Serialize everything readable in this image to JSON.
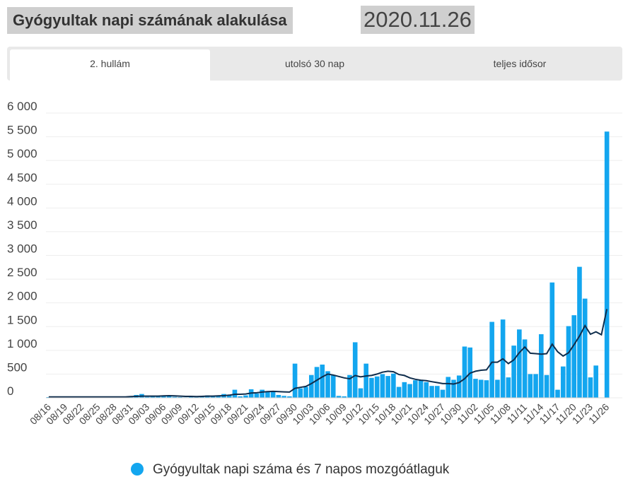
{
  "header": {
    "title": "Gyógyultak napi számának alakulása",
    "date": "2020.11.26"
  },
  "tabs": [
    "2. hullám",
    "utolsó 30 nap",
    "teljes idősor"
  ],
  "chart_data": {
    "type": "bar",
    "categories": [
      "08/16",
      null,
      null,
      "08/19",
      null,
      null,
      "08/22",
      null,
      null,
      "08/25",
      null,
      null,
      "08/28",
      null,
      null,
      "08/31",
      null,
      null,
      "09/03",
      null,
      null,
      "09/06",
      null,
      null,
      "09/09",
      null,
      null,
      "09/12",
      null,
      null,
      "09/15",
      null,
      null,
      "09/18",
      null,
      null,
      "09/21",
      null,
      null,
      "09/24",
      null,
      null,
      "09/27",
      null,
      null,
      "09/30",
      null,
      null,
      "10/03",
      null,
      null,
      "10/06",
      null,
      null,
      "10/09",
      null,
      null,
      "10/12",
      null,
      null,
      "10/15",
      null,
      null,
      "10/18",
      null,
      null,
      "10/21",
      null,
      null,
      "10/24",
      null,
      null,
      "10/27",
      null,
      null,
      "10/30",
      null,
      null,
      "11/02",
      null,
      null,
      "11/05",
      null,
      null,
      "11/08",
      null,
      null,
      "11/11",
      null,
      null,
      "11/14",
      null,
      null,
      "11/17",
      null,
      null,
      "11/20",
      null,
      null,
      "11/23",
      null,
      null,
      "11/26"
    ],
    "series": [
      {
        "name": "Gyógyultak napi száma és 7 napos mozgóátlaguk",
        "color": "#13a6ef",
        "line_color": "#0f2d4c",
        "values": [
          15,
          10,
          20,
          15,
          10,
          25,
          15,
          10,
          15,
          20,
          10,
          15,
          20,
          10,
          5,
          30,
          60,
          80,
          20,
          25,
          30,
          45,
          40,
          20,
          15,
          10,
          30,
          25,
          30,
          50,
          25,
          40,
          80,
          60,
          170,
          30,
          50,
          180,
          90,
          170,
          120,
          140,
          60,
          40,
          30,
          720,
          200,
          230,
          480,
          650,
          700,
          560,
          480,
          40,
          30,
          480,
          1170,
          200,
          720,
          420,
          450,
          500,
          460,
          510,
          230,
          330,
          290,
          370,
          380,
          330,
          250,
          250,
          170,
          440,
          380,
          470,
          1080,
          1060,
          400,
          380,
          370,
          1600,
          380,
          1650,
          430,
          1100,
          1440,
          1230,
          500,
          500,
          1340,
          480,
          2430,
          170,
          660,
          1510,
          1740,
          2760,
          2090,
          430,
          680,
          0,
          5610
        ],
        "moving_average": [
          20,
          20,
          20,
          20,
          20,
          20,
          20,
          20,
          20,
          20,
          20,
          20,
          20,
          20,
          20,
          25,
          30,
          35,
          35,
          35,
          35,
          40,
          45,
          40,
          35,
          30,
          30,
          25,
          30,
          35,
          35,
          40,
          45,
          55,
          75,
          75,
          80,
          100,
          105,
          120,
          130,
          135,
          130,
          125,
          120,
          200,
          220,
          240,
          300,
          370,
          440,
          500,
          480,
          450,
          420,
          400,
          470,
          440,
          460,
          470,
          500,
          540,
          560,
          550,
          490,
          470,
          420,
          390,
          370,
          360,
          340,
          320,
          300,
          300,
          290,
          320,
          400,
          520,
          560,
          580,
          590,
          750,
          750,
          820,
          720,
          800,
          950,
          1070,
          940,
          930,
          920,
          930,
          1130,
          970,
          880,
          950,
          1120,
          1300,
          1520,
          1340,
          1390,
          1330,
          1870
        ]
      }
    ],
    "ylim": [
      0,
      6000
    ],
    "yticks": [
      0,
      500,
      {
        "value": 1000,
        "label": "1 000"
      },
      {
        "value": 1500,
        "label": "1 500"
      },
      {
        "value": 2000,
        "label": "2 000"
      },
      {
        "value": 2500,
        "label": "2 500"
      },
      {
        "value": 3000,
        "label": "3 000"
      },
      {
        "value": 3500,
        "label": "3 500"
      },
      {
        "value": 4000,
        "label": "4 000"
      },
      {
        "value": 4500,
        "label": "4 500"
      },
      {
        "value": 5000,
        "label": "5 000"
      },
      {
        "value": 5500,
        "label": "5 500"
      },
      {
        "value": 6000,
        "label": "6 000"
      }
    ],
    "grid": true,
    "legend": "bottom"
  }
}
